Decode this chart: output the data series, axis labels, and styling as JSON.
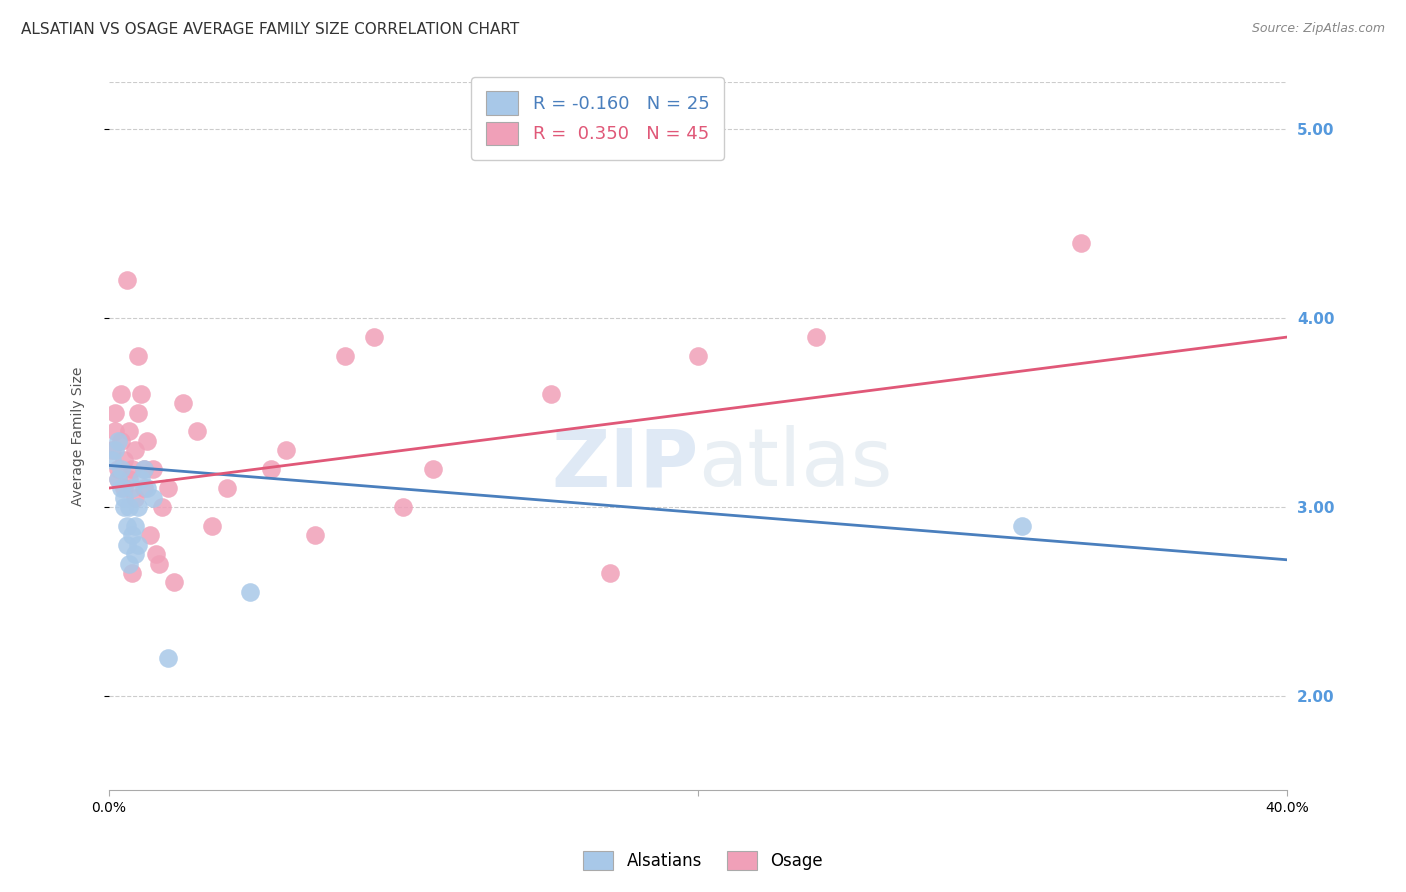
{
  "title": "ALSATIAN VS OSAGE AVERAGE FAMILY SIZE CORRELATION CHART",
  "source": "Source: ZipAtlas.com",
  "ylabel": "Average Family Size",
  "xlim": [
    0.0,
    0.4
  ],
  "ylim": [
    1.5,
    5.25
  ],
  "yticks": [
    2.0,
    3.0,
    4.0,
    5.0
  ],
  "background_color": "#ffffff",
  "grid_color": "#cccccc",
  "watermark": "ZIPatlas",
  "alsatians": {
    "color": "#a8c8e8",
    "line_color": "#4a7fbd",
    "R": -0.16,
    "N": 25,
    "label": "Alsatians",
    "x": [
      0.001,
      0.002,
      0.003,
      0.003,
      0.004,
      0.004,
      0.005,
      0.005,
      0.006,
      0.006,
      0.007,
      0.007,
      0.008,
      0.008,
      0.009,
      0.009,
      0.01,
      0.01,
      0.011,
      0.012,
      0.013,
      0.015,
      0.02,
      0.048,
      0.31
    ],
    "y": [
      3.25,
      3.3,
      3.15,
      3.35,
      3.1,
      3.2,
      3.05,
      3.0,
      2.9,
      2.8,
      2.7,
      3.0,
      3.1,
      2.85,
      2.9,
      2.75,
      2.8,
      3.0,
      3.15,
      3.2,
      3.1,
      3.05,
      2.2,
      2.55,
      2.9
    ],
    "line_x0": 0.0,
    "line_y0": 3.22,
    "line_x1": 0.4,
    "line_y1": 2.72
  },
  "osage": {
    "color": "#f0a0b8",
    "line_color": "#e05878",
    "R": 0.35,
    "N": 45,
    "label": "Osage",
    "x": [
      0.001,
      0.002,
      0.002,
      0.003,
      0.003,
      0.004,
      0.004,
      0.005,
      0.005,
      0.006,
      0.007,
      0.007,
      0.008,
      0.008,
      0.009,
      0.009,
      0.01,
      0.01,
      0.011,
      0.012,
      0.012,
      0.013,
      0.014,
      0.015,
      0.016,
      0.017,
      0.018,
      0.02,
      0.022,
      0.025,
      0.03,
      0.035,
      0.04,
      0.055,
      0.06,
      0.07,
      0.08,
      0.09,
      0.1,
      0.11,
      0.15,
      0.17,
      0.2,
      0.24,
      0.33
    ],
    "y": [
      3.3,
      3.4,
      3.5,
      3.2,
      3.15,
      3.6,
      3.35,
      3.1,
      3.25,
      4.2,
      3.4,
      3.15,
      3.2,
      2.65,
      3.3,
      3.05,
      3.5,
      3.8,
      3.6,
      3.1,
      3.2,
      3.35,
      2.85,
      3.2,
      2.75,
      2.7,
      3.0,
      3.1,
      2.6,
      3.55,
      3.4,
      2.9,
      3.1,
      3.2,
      3.3,
      2.85,
      3.8,
      3.9,
      3.0,
      3.2,
      3.6,
      2.65,
      3.8,
      3.9,
      4.4
    ],
    "line_x0": 0.0,
    "line_y0": 3.1,
    "line_x1": 0.4,
    "line_y1": 3.9
  },
  "title_fontsize": 11,
  "axis_label_fontsize": 10,
  "tick_fontsize": 10,
  "right_tick_color": "#5599dd"
}
